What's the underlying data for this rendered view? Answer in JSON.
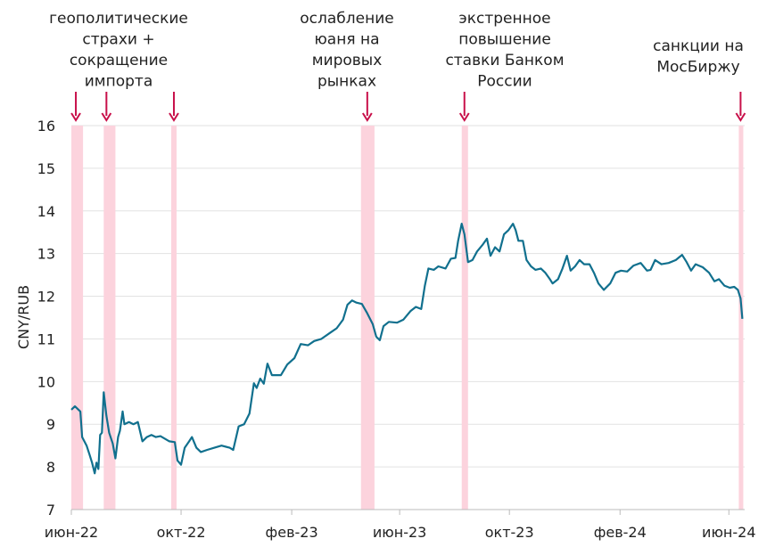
{
  "chart_data": {
    "type": "line",
    "title": "",
    "xlabel": "",
    "ylabel": "CNY/RUB",
    "ylim": [
      7,
      16
    ],
    "yticks": [
      7,
      8,
      9,
      10,
      11,
      12,
      13,
      14,
      15,
      16
    ],
    "grid": "horizontal",
    "xlim": [
      "2022-06-01",
      "2024-06-20"
    ],
    "xticks": [
      {
        "date": "2022-06-01",
        "label": "июн-22"
      },
      {
        "date": "2022-10-01",
        "label": "окт-22"
      },
      {
        "date": "2023-02-01",
        "label": "фев-23"
      },
      {
        "date": "2023-06-01",
        "label": "июн-23"
      },
      {
        "date": "2023-10-01",
        "label": "окт-23"
      },
      {
        "date": "2024-02-01",
        "label": "фев-24"
      },
      {
        "date": "2024-06-01",
        "label": "июн-24"
      }
    ],
    "colors": {
      "line": "#11708e",
      "band": "#fcd3dd",
      "arrow": "#c8104a",
      "grid": "#e2e2e2",
      "axis": "#bbbbbb"
    },
    "series": [
      {
        "points": [
          [
            "2022-06-01",
            9.34
          ],
          [
            "2022-06-05",
            9.42
          ],
          [
            "2022-06-11",
            9.3
          ],
          [
            "2022-06-13",
            8.7
          ],
          [
            "2022-06-18",
            8.5
          ],
          [
            "2022-06-21",
            8.3
          ],
          [
            "2022-06-24",
            8.1
          ],
          [
            "2022-06-27",
            7.85
          ],
          [
            "2022-06-29",
            8.1
          ],
          [
            "2022-07-01",
            7.95
          ],
          [
            "2022-07-03",
            8.75
          ],
          [
            "2022-07-05",
            8.8
          ],
          [
            "2022-07-07",
            9.75
          ],
          [
            "2022-07-10",
            9.2
          ],
          [
            "2022-07-13",
            8.8
          ],
          [
            "2022-07-17",
            8.55
          ],
          [
            "2022-07-20",
            8.2
          ],
          [
            "2022-07-23",
            8.7
          ],
          [
            "2022-07-25",
            8.85
          ],
          [
            "2022-07-28",
            9.3
          ],
          [
            "2022-07-30",
            9.0
          ],
          [
            "2022-08-04",
            9.05
          ],
          [
            "2022-08-09",
            9.0
          ],
          [
            "2022-08-14",
            9.05
          ],
          [
            "2022-08-19",
            8.6
          ],
          [
            "2022-08-24",
            8.7
          ],
          [
            "2022-08-29",
            8.75
          ],
          [
            "2022-09-03",
            8.7
          ],
          [
            "2022-09-08",
            8.72
          ],
          [
            "2022-09-18",
            8.6
          ],
          [
            "2022-09-24",
            8.58
          ],
          [
            "2022-09-27",
            8.15
          ],
          [
            "2022-10-01",
            8.05
          ],
          [
            "2022-10-05",
            8.45
          ],
          [
            "2022-10-10",
            8.6
          ],
          [
            "2022-10-13",
            8.7
          ],
          [
            "2022-10-18",
            8.45
          ],
          [
            "2022-10-23",
            8.35
          ],
          [
            "2022-10-30",
            8.4
          ],
          [
            "2022-11-07",
            8.45
          ],
          [
            "2022-11-15",
            8.5
          ],
          [
            "2022-11-24",
            8.45
          ],
          [
            "2022-11-28",
            8.4
          ],
          [
            "2022-12-04",
            8.95
          ],
          [
            "2022-12-10",
            9.0
          ],
          [
            "2022-12-16",
            9.25
          ],
          [
            "2022-12-21",
            9.96
          ],
          [
            "2022-12-24",
            9.85
          ],
          [
            "2022-12-28",
            10.07
          ],
          [
            "2023-01-01",
            9.95
          ],
          [
            "2023-01-05",
            10.42
          ],
          [
            "2023-01-10",
            10.15
          ],
          [
            "2023-01-20",
            10.15
          ],
          [
            "2023-01-27",
            10.4
          ],
          [
            "2023-02-04",
            10.55
          ],
          [
            "2023-02-11",
            10.88
          ],
          [
            "2023-02-19",
            10.85
          ],
          [
            "2023-02-26",
            10.95
          ],
          [
            "2023-03-06",
            11.0
          ],
          [
            "2023-03-16",
            11.15
          ],
          [
            "2023-03-23",
            11.25
          ],
          [
            "2023-03-30",
            11.45
          ],
          [
            "2023-04-04",
            11.8
          ],
          [
            "2023-04-09",
            11.9
          ],
          [
            "2023-04-14",
            11.85
          ],
          [
            "2023-04-20",
            11.82
          ],
          [
            "2023-04-26",
            11.6
          ],
          [
            "2023-05-02",
            11.35
          ],
          [
            "2023-05-06",
            11.05
          ],
          [
            "2023-05-10",
            10.97
          ],
          [
            "2023-05-14",
            11.3
          ],
          [
            "2023-05-20",
            11.4
          ],
          [
            "2023-05-29",
            11.38
          ],
          [
            "2023-06-05",
            11.45
          ],
          [
            "2023-06-13",
            11.65
          ],
          [
            "2023-06-19",
            11.75
          ],
          [
            "2023-06-25",
            11.7
          ],
          [
            "2023-06-29",
            12.25
          ],
          [
            "2023-07-03",
            12.65
          ],
          [
            "2023-07-09",
            12.62
          ],
          [
            "2023-07-14",
            12.7
          ],
          [
            "2023-07-22",
            12.65
          ],
          [
            "2023-07-28",
            12.88
          ],
          [
            "2023-08-02",
            12.9
          ],
          [
            "2023-08-05",
            13.3
          ],
          [
            "2023-08-09",
            13.7
          ],
          [
            "2023-08-12",
            13.45
          ],
          [
            "2023-08-16",
            12.8
          ],
          [
            "2023-08-21",
            12.85
          ],
          [
            "2023-08-26",
            13.05
          ],
          [
            "2023-09-01",
            13.2
          ],
          [
            "2023-09-06",
            13.35
          ],
          [
            "2023-09-10",
            12.95
          ],
          [
            "2023-09-15",
            13.15
          ],
          [
            "2023-09-20",
            13.05
          ],
          [
            "2023-09-25",
            13.45
          ],
          [
            "2023-09-30",
            13.55
          ],
          [
            "2023-10-05",
            13.7
          ],
          [
            "2023-10-08",
            13.55
          ],
          [
            "2023-10-11",
            13.3
          ],
          [
            "2023-10-16",
            13.3
          ],
          [
            "2023-10-20",
            12.85
          ],
          [
            "2023-10-25",
            12.7
          ],
          [
            "2023-10-30",
            12.62
          ],
          [
            "2023-11-05",
            12.65
          ],
          [
            "2023-11-10",
            12.55
          ],
          [
            "2023-11-15",
            12.4
          ],
          [
            "2023-11-18",
            12.3
          ],
          [
            "2023-11-24",
            12.4
          ],
          [
            "2023-11-29",
            12.65
          ],
          [
            "2023-12-04",
            12.95
          ],
          [
            "2023-12-08",
            12.6
          ],
          [
            "2023-12-13",
            12.7
          ],
          [
            "2023-12-18",
            12.85
          ],
          [
            "2023-12-23",
            12.75
          ],
          [
            "2023-12-29",
            12.75
          ],
          [
            "2024-01-03",
            12.55
          ],
          [
            "2024-01-08",
            12.3
          ],
          [
            "2024-01-14",
            12.15
          ],
          [
            "2024-01-21",
            12.3
          ],
          [
            "2024-01-27",
            12.55
          ],
          [
            "2024-02-02",
            12.6
          ],
          [
            "2024-02-09",
            12.58
          ],
          [
            "2024-02-16",
            12.72
          ],
          [
            "2024-02-24",
            12.78
          ],
          [
            "2024-03-02",
            12.6
          ],
          [
            "2024-03-06",
            12.62
          ],
          [
            "2024-03-11",
            12.85
          ],
          [
            "2024-03-18",
            12.75
          ],
          [
            "2024-03-26",
            12.78
          ],
          [
            "2024-04-03",
            12.85
          ],
          [
            "2024-04-10",
            12.97
          ],
          [
            "2024-04-15",
            12.8
          ],
          [
            "2024-04-20",
            12.6
          ],
          [
            "2024-04-25",
            12.75
          ],
          [
            "2024-05-03",
            12.68
          ],
          [
            "2024-05-10",
            12.55
          ],
          [
            "2024-05-16",
            12.35
          ],
          [
            "2024-05-21",
            12.4
          ],
          [
            "2024-05-27",
            12.25
          ],
          [
            "2024-06-02",
            12.2
          ],
          [
            "2024-06-07",
            12.22
          ],
          [
            "2024-06-11",
            12.15
          ],
          [
            "2024-06-14",
            11.95
          ],
          [
            "2024-06-16",
            11.47
          ]
        ]
      }
    ],
    "bands": [
      [
        "2022-06-01",
        "2022-06-14"
      ],
      [
        "2022-07-07",
        "2022-07-20"
      ],
      [
        "2022-09-20",
        "2022-09-26"
      ],
      [
        "2023-04-19",
        "2023-05-04"
      ],
      [
        "2023-08-09",
        "2023-08-16"
      ],
      [
        "2024-06-12",
        "2024-06-17"
      ]
    ],
    "arrows": [
      "2022-06-06",
      "2022-07-10",
      "2022-09-23",
      "2023-04-26",
      "2023-08-12",
      "2024-06-14"
    ],
    "annotations": [
      {
        "lines": [
          "геополитические",
          "страхи +",
          "сокращение",
          "импорта"
        ]
      },
      {
        "lines": [
          "ослабление",
          "юаня на",
          "мировых",
          "рынках"
        ]
      },
      {
        "lines": [
          "экстренное",
          "повышение",
          "ставки Банком",
          "России"
        ]
      },
      {
        "lines": [
          "санкции на",
          "МосБиржу"
        ]
      }
    ]
  }
}
